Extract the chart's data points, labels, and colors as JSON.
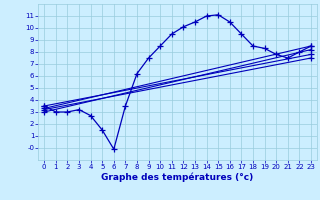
{
  "title": "Graphe des températures (°c)",
  "bg_color": "#cceeff",
  "grid_color": "#99ccdd",
  "line_color": "#0000bb",
  "xlim": [
    -0.5,
    23.5
  ],
  "ylim": [
    -1.0,
    12.0
  ],
  "xticks": [
    0,
    1,
    2,
    3,
    4,
    5,
    6,
    7,
    8,
    9,
    10,
    11,
    12,
    13,
    14,
    15,
    16,
    17,
    18,
    19,
    20,
    21,
    22,
    23
  ],
  "yticks": [
    0,
    1,
    2,
    3,
    4,
    5,
    6,
    7,
    8,
    9,
    10,
    11
  ],
  "ytick_labels": [
    "-0",
    "1",
    "2",
    "3",
    "4",
    "5",
    "6",
    "7",
    "8",
    "9",
    "10",
    "11"
  ],
  "curve1_x": [
    0,
    1,
    2,
    3,
    4,
    5,
    6,
    7,
    8,
    9,
    10,
    11,
    12,
    13,
    14,
    15,
    16,
    17,
    18,
    19,
    20,
    21,
    22,
    23
  ],
  "curve1_y": [
    3.5,
    3.0,
    3.0,
    3.2,
    2.7,
    1.5,
    -0.1,
    3.5,
    6.2,
    7.5,
    8.5,
    9.5,
    10.1,
    10.5,
    11.0,
    11.1,
    10.5,
    9.5,
    8.5,
    8.3,
    7.8,
    7.5,
    8.0,
    8.5
  ],
  "line2_x": [
    0,
    23
  ],
  "line2_y": [
    3.3,
    8.5
  ],
  "line3_x": [
    0,
    23
  ],
  "line3_y": [
    3.0,
    8.2
  ],
  "line4_x": [
    0,
    23
  ],
  "line4_y": [
    3.5,
    7.8
  ],
  "line5_x": [
    0,
    23
  ],
  "line5_y": [
    3.2,
    7.5
  ]
}
